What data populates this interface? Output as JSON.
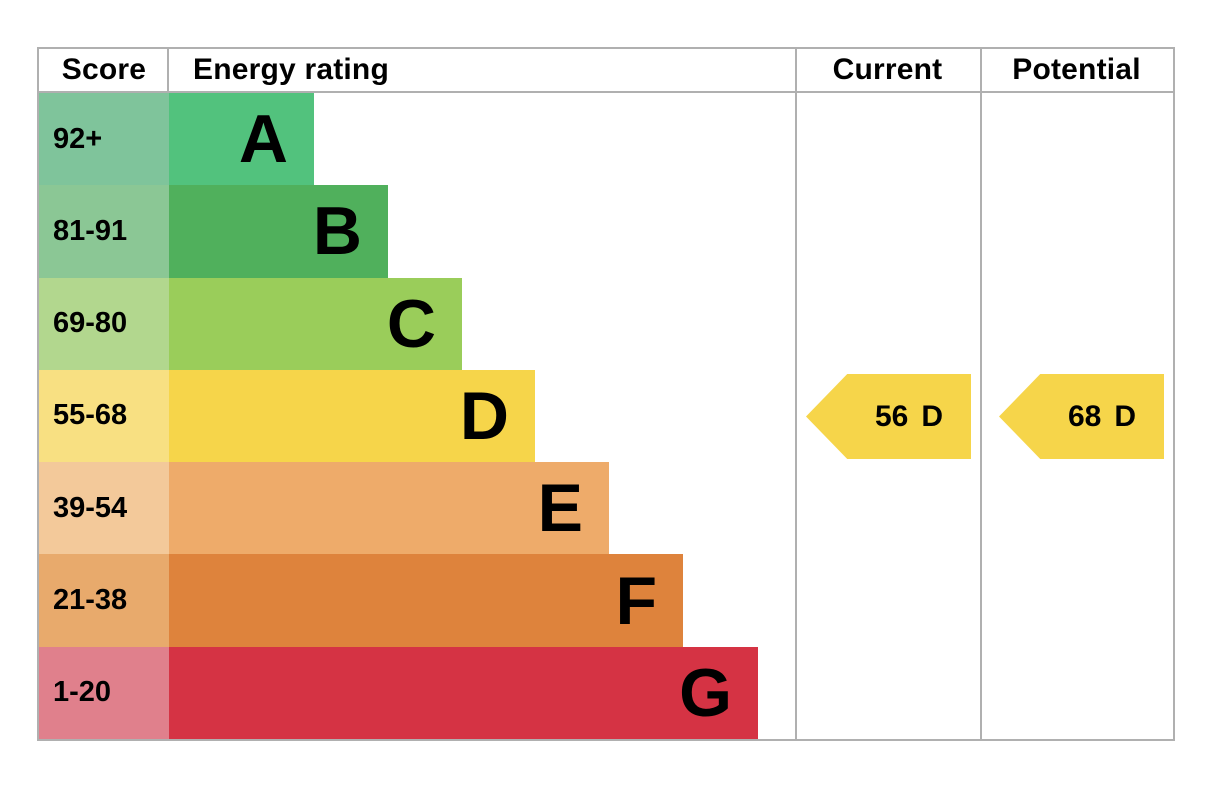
{
  "chart_data": {
    "type": "bar",
    "subtype": "epc-energy-rating-certificate",
    "headers": {
      "score": "Score",
      "energy_rating": "Energy rating",
      "current": "Current",
      "potential": "Potential"
    },
    "bands": [
      {
        "score_range": "92+",
        "letter": "A",
        "bar_color": "#52c27d",
        "score_bg_color": "#7fc49b"
      },
      {
        "score_range": "81-91",
        "letter": "B",
        "bar_color": "#50b05c",
        "score_bg_color": "#8bc795"
      },
      {
        "score_range": "69-80",
        "letter": "C",
        "bar_color": "#9acd5a",
        "score_bg_color": "#b2d78e"
      },
      {
        "score_range": "55-68",
        "letter": "D",
        "bar_color": "#f6d54a",
        "score_bg_color": "#f8e082"
      },
      {
        "score_range": "39-54",
        "letter": "E",
        "bar_color": "#eeab6a",
        "score_bg_color": "#f3c99a"
      },
      {
        "score_range": "21-38",
        "letter": "F",
        "bar_color": "#de833c",
        "score_bg_color": "#e8aa6c"
      },
      {
        "score_range": "1-20",
        "letter": "G",
        "bar_color": "#d53344",
        "score_bg_color": "#e0808c"
      }
    ],
    "current": {
      "value": "56",
      "band": "D",
      "arrow_color": "#f6d54a"
    },
    "potential": {
      "value": "68",
      "band": "D",
      "arrow_color": "#f6d54a"
    },
    "layout": {
      "legend": "none",
      "grid": "off",
      "border_color": "#b0b0b0"
    }
  }
}
